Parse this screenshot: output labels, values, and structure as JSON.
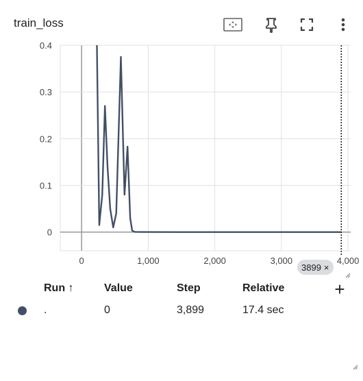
{
  "card": {
    "title": "train_loss"
  },
  "toolbar": {
    "fit_icon": "fit-domain-icon",
    "pin_icon": "pin-icon",
    "fullscreen_icon": "fullscreen-icon",
    "more_icon": "more-vert-icon"
  },
  "chart_data": {
    "type": "line",
    "xlabel": "",
    "ylabel": "",
    "x_ticks": [
      "0",
      "1,000",
      "2,000",
      "3,000",
      "4,000"
    ],
    "y_ticks": [
      "0",
      "0.1",
      "0.2",
      "0.3",
      "0.4"
    ],
    "xlim": [
      -320,
      4040
    ],
    "ylim": [
      -0.04,
      0.4
    ],
    "grid": true,
    "series": [
      {
        "color": "#425066",
        "points": [
          [
            230,
            0.4
          ],
          [
            265,
            0.015
          ],
          [
            310,
            0.08
          ],
          [
            350,
            0.27
          ],
          [
            390,
            0.14
          ],
          [
            430,
            0.05
          ],
          [
            475,
            0.01
          ],
          [
            520,
            0.04
          ],
          [
            590,
            0.375
          ],
          [
            645,
            0.08
          ],
          [
            690,
            0.183
          ],
          [
            730,
            0.03
          ],
          [
            760,
            0.003
          ],
          [
            800,
            0.0005
          ],
          [
            900,
            0.0002
          ],
          [
            1500,
            0.0001
          ],
          [
            2500,
            0.0001
          ],
          [
            3500,
            0.0
          ],
          [
            3899,
            0.0
          ]
        ]
      }
    ],
    "cursor_step": 3899
  },
  "cursor_chip": {
    "label": "3899",
    "close": "×"
  },
  "table": {
    "headers": {
      "run": "Run ↑",
      "value": "Value",
      "step": "Step",
      "relative": "Relative"
    },
    "rows": [
      {
        "color": "#425066",
        "run": ".",
        "value": "0",
        "step": "3,899",
        "relative": "17.4 sec"
      }
    ],
    "add_label": "+"
  }
}
